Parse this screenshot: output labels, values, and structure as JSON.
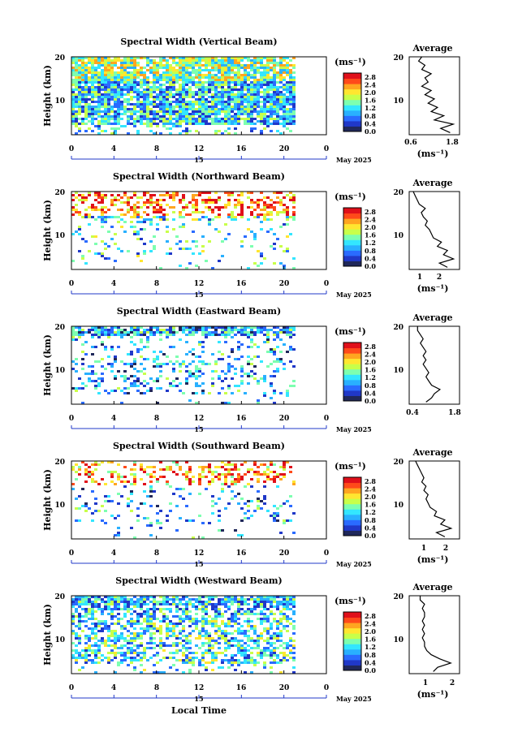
{
  "figure": {
    "height_label": "Height (km)",
    "local_time_label": "Local Time",
    "cb_unit_label": "(ms⁻¹)",
    "avg_title": "Average",
    "date_label": "May 2025",
    "day_label": "15",
    "colors": [
      "#20285a",
      "#2038c8",
      "#2a6bff",
      "#29b0ff",
      "#33e6ff",
      "#7dffb0",
      "#c8ff4a",
      "#ffe630",
      "#ffa520",
      "#ff4a1a",
      "#e0101a"
    ]
  },
  "chart_data": [
    {
      "type": "heatmap",
      "title": "Spectral Width (Vertical Beam)",
      "xlabel": "",
      "ylabel": "Height (km)",
      "x_ticks": [
        "0",
        "4",
        "8",
        "12",
        "16",
        "20",
        "0"
      ],
      "xlim": [
        0,
        24
      ],
      "y_ticks": [
        "20",
        "10"
      ],
      "ylim": [
        1.5,
        20
      ],
      "colorbar": {
        "label": "(ms⁻¹)",
        "ticks": [
          "2.8",
          "2.4",
          "2.0",
          "1.6",
          "1.2",
          "0.8",
          "0.4",
          "0.0"
        ],
        "range": [
          0,
          3.0
        ]
      },
      "profile": {
        "title": "Average",
        "xlabel": "(ms⁻¹)",
        "x_ticks": [
          "0.6",
          "1.8"
        ],
        "xlim": [
          0.4,
          2.0
        ],
        "heights": [
          2,
          3,
          4,
          5,
          6,
          7,
          8,
          9,
          10,
          11,
          12,
          13,
          14,
          15,
          16,
          17,
          18,
          19,
          20
        ],
        "values": [
          1.7,
          1.4,
          1.8,
          1.2,
          1.5,
          1.1,
          1.3,
          1.0,
          1.2,
          0.9,
          1.1,
          0.8,
          1.0,
          0.9,
          1.1,
          0.8,
          0.9,
          0.7,
          0.8
        ]
      }
    },
    {
      "type": "heatmap",
      "title": "Spectral Width (Northward Beam)",
      "xlabel": "",
      "ylabel": "Height (km)",
      "x_ticks": [
        "0",
        "4",
        "8",
        "12",
        "16",
        "20",
        "0"
      ],
      "xlim": [
        0,
        24
      ],
      "y_ticks": [
        "20",
        "10"
      ],
      "ylim": [
        1.5,
        20
      ],
      "colorbar": {
        "label": "(ms⁻¹)",
        "ticks": [
          "2.8",
          "2.4",
          "2.0",
          "1.6",
          "1.2",
          "0.8",
          "0.4",
          "0.0"
        ],
        "range": [
          0,
          3.0
        ]
      },
      "profile": {
        "title": "Average",
        "xlabel": "(ms⁻¹)",
        "x_ticks": [
          "1",
          "2"
        ],
        "xlim": [
          0.3,
          2.8
        ],
        "heights": [
          2,
          3,
          4,
          5,
          6,
          7,
          8,
          9,
          10,
          11,
          12,
          13,
          14,
          15,
          16,
          17,
          18,
          19,
          20
        ],
        "values": [
          2.2,
          1.8,
          2.5,
          2.0,
          2.2,
          1.7,
          1.9,
          1.5,
          1.4,
          1.3,
          1.1,
          1.2,
          1.0,
          0.9,
          1.1,
          0.8,
          0.7,
          0.6,
          0.5
        ]
      }
    },
    {
      "type": "heatmap",
      "title": "Spectral Width (Eastward Beam)",
      "xlabel": "",
      "ylabel": "Height (km)",
      "x_ticks": [
        "0",
        "4",
        "8",
        "12",
        "16",
        "20",
        "0"
      ],
      "xlim": [
        0,
        24
      ],
      "y_ticks": [
        "20",
        "10"
      ],
      "ylim": [
        1.5,
        20
      ],
      "colorbar": {
        "label": "(ms⁻¹)",
        "ticks": [
          "2.8",
          "2.4",
          "2.0",
          "1.6",
          "1.2",
          "0.8",
          "0.4",
          "0.0"
        ],
        "range": [
          0,
          3.0
        ]
      },
      "profile": {
        "title": "Average",
        "xlabel": "",
        "x_ticks": [
          "0.4",
          "1.8"
        ],
        "xlim": [
          0.2,
          2.0
        ],
        "heights": [
          2,
          3,
          4,
          5,
          6,
          7,
          8,
          9,
          10,
          11,
          12,
          13,
          14,
          15,
          16,
          17,
          18,
          19,
          20
        ],
        "values": [
          0.8,
          1.0,
          1.1,
          1.3,
          1.0,
          0.9,
          0.8,
          0.9,
          0.8,
          0.7,
          0.8,
          0.7,
          0.8,
          0.7,
          0.6,
          0.7,
          0.6,
          0.5,
          0.5
        ]
      }
    },
    {
      "type": "heatmap",
      "title": "Spectral Width (Southward Beam)",
      "xlabel": "",
      "ylabel": "Height (km)",
      "x_ticks": [
        "0",
        "4",
        "8",
        "12",
        "16",
        "20",
        "0"
      ],
      "xlim": [
        0,
        24
      ],
      "y_ticks": [
        "20",
        "10"
      ],
      "ylim": [
        1.5,
        20
      ],
      "colorbar": {
        "label": "(ms⁻¹)",
        "ticks": [
          "2.8",
          "2.4",
          "2.0",
          "1.6",
          "1.2",
          "0.8",
          "0.4",
          "0.0"
        ],
        "range": [
          0,
          3.0
        ]
      },
      "profile": {
        "title": "Average",
        "xlabel": "(ms⁻¹)",
        "x_ticks": [
          "1",
          "2"
        ],
        "xlim": [
          0.3,
          2.7
        ],
        "heights": [
          2,
          3,
          4,
          5,
          6,
          7,
          8,
          9,
          10,
          11,
          12,
          13,
          14,
          15,
          16,
          17,
          18,
          19,
          20
        ],
        "values": [
          2.0,
          1.6,
          2.3,
          1.8,
          2.0,
          1.5,
          1.6,
          1.3,
          1.2,
          1.1,
          1.2,
          1.0,
          1.1,
          0.9,
          1.0,
          0.9,
          0.8,
          0.7,
          0.6
        ]
      }
    },
    {
      "type": "heatmap",
      "title": "Spectral Width (Westward Beam)",
      "xlabel": "Local Time",
      "ylabel": "Height (km)",
      "x_ticks": [
        "0",
        "4",
        "8",
        "12",
        "16",
        "20",
        "0"
      ],
      "xlim": [
        0,
        24
      ],
      "y_ticks": [
        "20",
        "10"
      ],
      "ylim": [
        1.5,
        20
      ],
      "colorbar": {
        "label": "(ms⁻¹)",
        "ticks": [
          "2.8",
          "2.4",
          "2.0",
          "1.6",
          "1.2",
          "0.8",
          "0.4",
          "0.0"
        ],
        "range": [
          0,
          3.0
        ]
      },
      "profile": {
        "title": "Average",
        "xlabel": "(ms⁻¹)",
        "x_ticks": [
          "1",
          "2"
        ],
        "xlim": [
          0.3,
          2.6
        ],
        "heights": [
          2,
          3,
          4,
          5,
          6,
          7,
          8,
          9,
          10,
          11,
          12,
          13,
          14,
          15,
          16,
          17,
          18,
          19,
          20
        ],
        "values": [
          1.4,
          1.6,
          2.2,
          1.7,
          1.3,
          1.1,
          1.0,
          1.0,
          0.9,
          1.0,
          0.9,
          1.0,
          0.9,
          1.0,
          1.0,
          0.9,
          1.0,
          0.8,
          0.8
        ]
      }
    }
  ]
}
